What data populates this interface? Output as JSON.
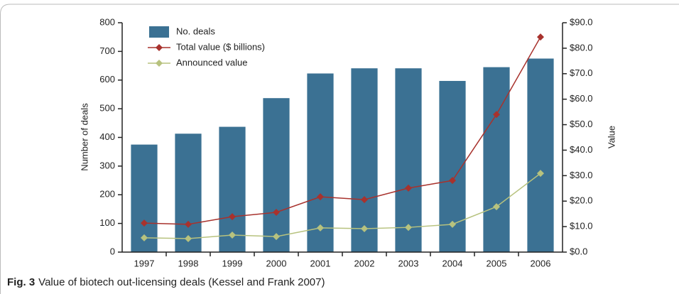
{
  "chart_data": {
    "type": "bar_line",
    "caption_label": "Fig. 3",
    "caption": "Value of biotech out-licensing deals (Kessel and Frank 2007)",
    "ylabel": "Number of deals",
    "y2label": "Value",
    "categories": [
      "1997",
      "1998",
      "1999",
      "2000",
      "2001",
      "2002",
      "2003",
      "2004",
      "2005",
      "2006"
    ],
    "series": [
      {
        "name": "No. deals",
        "type": "bar",
        "color": "#3b7193",
        "values": [
          375,
          413,
          437,
          537,
          623,
          641,
          641,
          597,
          645,
          675
        ]
      },
      {
        "name": "Total value ($ billions)",
        "type": "line",
        "axis": "y2",
        "color": "#a8322d",
        "values": [
          11.4,
          10.9,
          13.9,
          15.6,
          21.7,
          20.6,
          25.1,
          28.1,
          54.0,
          84.4
        ]
      },
      {
        "name": "Announced value",
        "type": "line",
        "axis": "y2",
        "color": "#b7c27e",
        "values": [
          5.6,
          5.3,
          6.7,
          6.1,
          9.5,
          9.2,
          9.7,
          10.9,
          17.8,
          30.9
        ]
      }
    ],
    "ylim": [
      0,
      800
    ],
    "yticks": [
      0,
      100,
      200,
      300,
      400,
      500,
      600,
      700,
      800
    ],
    "y2lim": [
      0,
      90
    ],
    "y2ticks": [
      {
        "value": 0,
        "label": "$0.0"
      },
      {
        "value": 10,
        "label": "$10.0"
      },
      {
        "value": 20,
        "label": "$20.0"
      },
      {
        "value": 30,
        "label": "$30.0"
      },
      {
        "value": 40,
        "label": "$40.0"
      },
      {
        "value": 50,
        "label": "$50.0"
      },
      {
        "value": 60,
        "label": "$60.0"
      },
      {
        "value": 70,
        "label": "$70.0"
      },
      {
        "value": 80,
        "label": "$80.0"
      },
      {
        "value": 90,
        "label": "$90.0"
      }
    ],
    "legend": "upper left"
  }
}
